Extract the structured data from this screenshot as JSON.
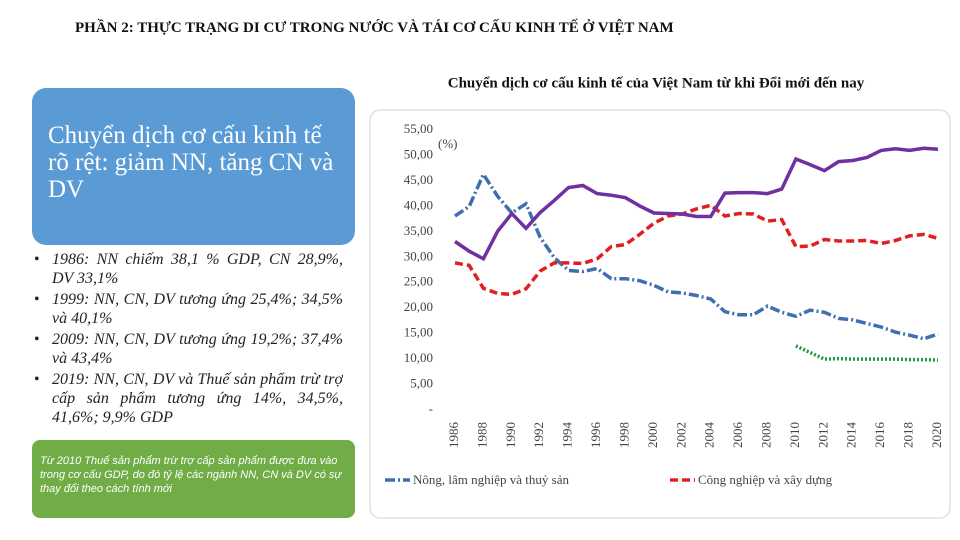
{
  "header": {
    "title": "PHẦN 2: THỰC TRẠNG DI CƯ TRONG NƯỚC VÀ TÁI CƠ CẤU KINH TẾ Ở VIỆT NAM"
  },
  "left_panel": {
    "headline": "Chuyển dịch cơ cấu kinh tế rõ rệt: giảm NN, tăng CN và DV",
    "bullets": [
      "1986: NN chiếm 38,1 % GDP, CN 28,9%, DV 33,1%",
      "1999: NN, CN, DV tương ứng 25,4%; 34,5% và 40,1%",
      "2009: NN, CN, DV tương ứng 19,2%; 37,4% và 43,4%",
      "2019: NN, CN, DV và Thuế sản phẩm trừ trợ cấp sản phẩm tương ứng 14%, 34,5%, 41,6%; 9,9% GDP"
    ],
    "note": "Từ 2010 Thuế sản phẩm trừ trợ cấp sản phẩm được đưa vào trong cơ cấu GDP, do đó tỷ lệ các ngành NN, CN và DV có sự thay đổi theo cách tính mới"
  },
  "chart_data": {
    "type": "line",
    "title": "Chuyển dịch cơ cấu kinh tế của Việt Nam từ khi Đổi mới đến nay",
    "y_label": "(%)",
    "x": [
      1986,
      1987,
      1988,
      1989,
      1990,
      1991,
      1992,
      1993,
      1994,
      1995,
      1996,
      1997,
      1998,
      1999,
      2000,
      2001,
      2002,
      2003,
      2004,
      2005,
      2006,
      2007,
      2008,
      2009,
      2010,
      2011,
      2012,
      2013,
      2014,
      2015,
      2016,
      2017,
      2018,
      2019,
      2020
    ],
    "xlim": [
      1986,
      2020
    ],
    "xticks": [
      1986,
      1988,
      1990,
      1992,
      1994,
      1996,
      1998,
      2000,
      2002,
      2004,
      2006,
      2008,
      2010,
      2012,
      2014,
      2016,
      2018,
      2020
    ],
    "ylim": [
      0,
      55
    ],
    "yticks": [
      {
        "value": 0,
        "label": "-"
      },
      {
        "value": 5,
        "label": "5,00"
      },
      {
        "value": 10,
        "label": "10,00"
      },
      {
        "value": 15,
        "label": "15,00"
      },
      {
        "value": 20,
        "label": "20,00"
      },
      {
        "value": 25,
        "label": "25,00"
      },
      {
        "value": 30,
        "label": "30,00"
      },
      {
        "value": 35,
        "label": "35,00"
      },
      {
        "value": 40,
        "label": "40,00"
      },
      {
        "value": 45,
        "label": "45,00"
      },
      {
        "value": 50,
        "label": "50,00"
      },
      {
        "value": 55,
        "label": "55,00"
      }
    ],
    "series": [
      {
        "name": "Nông, lâm nghiệp và thuỷ sản",
        "color": "#3e6fb0",
        "style": "dash-dot",
        "values": [
          38.1,
          40,
          46.3,
          42,
          38.7,
          40.5,
          33.9,
          29.9,
          27.4,
          27.2,
          27.8,
          25.8,
          25.8,
          25.4,
          24.5,
          23.2,
          23,
          22.5,
          21.8,
          19.3,
          18.7,
          18.7,
          20.4,
          19.2,
          18.4,
          19.6,
          19.2,
          18,
          17.7,
          17,
          16.3,
          15.3,
          14.7,
          14,
          14.9
        ]
      },
      {
        "name": "Công nghiệp và xây dựng",
        "color": "#e02020",
        "style": "dash",
        "values": [
          28.9,
          28.4,
          23.9,
          22.9,
          22.7,
          23.8,
          27.3,
          28.9,
          28.9,
          28.8,
          29.7,
          32.1,
          32.5,
          34.5,
          36.7,
          38.1,
          38.5,
          39.5,
          40.2,
          38.1,
          38.6,
          38.5,
          37.1,
          37.4,
          32.1,
          32.2,
          33.5,
          33.2,
          33.2,
          33.3,
          32.7,
          33.3,
          34.2,
          34.5,
          33.7
        ]
      },
      {
        "color": "#7030a0",
        "style": "solid",
        "values": [
          33.1,
          31.2,
          29.7,
          35.1,
          38.6,
          35.7,
          38.8,
          41.2,
          43.7,
          44.1,
          42.5,
          42.2,
          41.7,
          40.1,
          38.7,
          38.6,
          38.5,
          38,
          38,
          42.6,
          42.7,
          42.7,
          42.5,
          43.4,
          49.3,
          48.2,
          47,
          48.8,
          49,
          49.6,
          51,
          51.3,
          51,
          51.4,
          51.2
        ]
      },
      {
        "color": "#1f9a3f",
        "style": "dot",
        "values": [
          null,
          null,
          null,
          null,
          null,
          null,
          null,
          null,
          null,
          null,
          null,
          null,
          null,
          null,
          null,
          null,
          null,
          null,
          null,
          null,
          null,
          null,
          null,
          null,
          12.6,
          11.3,
          10,
          10.1,
          10,
          10,
          10,
          10,
          9.9,
          9.9,
          9.8
        ]
      }
    ]
  }
}
